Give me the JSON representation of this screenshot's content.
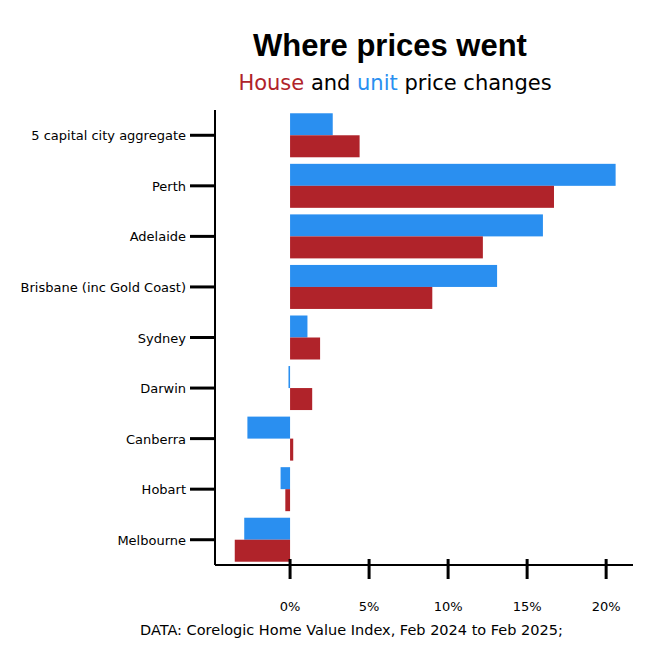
{
  "chart_data": {
    "type": "bar",
    "orientation": "horizontal",
    "title": "Where prices went",
    "subtitle": "House and unit price changes",
    "source": "DATA: Corelogic Home Value Index, Feb 2024 to Feb 2025;",
    "categories": [
      "5 capital city aggregate",
      "Perth",
      "Adelaide",
      "Brisbane (inc Gold Coast)",
      "Sydney",
      "Darwin",
      "Canberra",
      "Hobart",
      "Melbourne"
    ],
    "series": [
      {
        "name": "unit",
        "color": "#2a8ff0",
        "values": [
          2.7,
          20.6,
          16.0,
          13.1,
          1.1,
          -0.1,
          -2.7,
          -0.6,
          -2.9
        ]
      },
      {
        "name": "House",
        "color": "#b0232a",
        "values": [
          4.4,
          16.7,
          12.2,
          9.0,
          1.9,
          1.4,
          0.2,
          -0.3,
          -3.5
        ]
      }
    ],
    "xlim": [
      -4.75,
      21.7
    ],
    "xticks": [
      {
        "value": 0,
        "label": "0%"
      },
      {
        "value": 5,
        "label": "5%"
      },
      {
        "value": 10,
        "label": "10%"
      },
      {
        "value": 15,
        "label": "15%"
      },
      {
        "value": 20,
        "label": "20%"
      }
    ],
    "grid": false
  }
}
